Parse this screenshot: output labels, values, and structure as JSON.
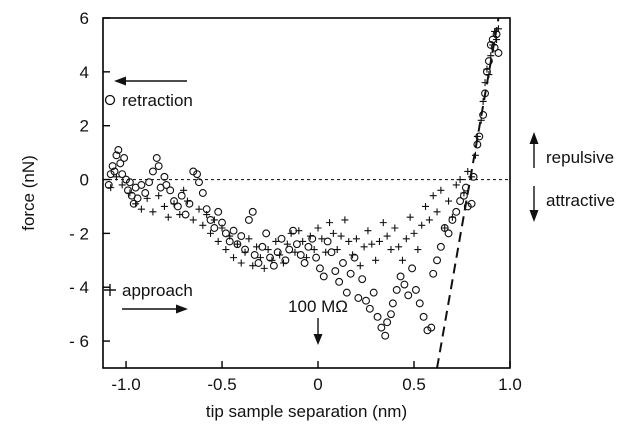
{
  "chart_data": {
    "type": "scatter",
    "title": "",
    "xlabel": "tip sample separation (nm)",
    "ylabel": "force (nN)",
    "xlim": [
      -1.12,
      1.0
    ],
    "ylim": [
      -7.0,
      6.0
    ],
    "x_ticks": [
      -1.0,
      -0.5,
      0,
      0.5,
      1.0
    ],
    "x_tick_labels": [
      "-1.0",
      "-0.5",
      "0",
      "0.5",
      "1.0"
    ],
    "y_ticks": [
      6,
      4,
      2,
      0,
      -2,
      -4,
      -6
    ],
    "y_tick_labels": [
      "6",
      "4",
      "2",
      "0",
      "- 2",
      "- 4",
      "- 6"
    ],
    "grid": false,
    "zero_line": {
      "y": 0,
      "style": "dotted"
    },
    "fit_line": {
      "style": "dashed",
      "points": [
        [
          0.62,
          -7.0
        ],
        [
          0.94,
          6.0
        ]
      ]
    },
    "series": [
      {
        "name": "retraction",
        "marker": "circle",
        "points": [
          [
            -1.09,
            -0.2
          ],
          [
            -1.08,
            0.2
          ],
          [
            -1.07,
            0.5
          ],
          [
            -1.06,
            0.3
          ],
          [
            -1.05,
            0.9
          ],
          [
            -1.04,
            1.1
          ],
          [
            -1.03,
            0.6
          ],
          [
            -1.02,
            0.2
          ],
          [
            -1.01,
            0.8
          ],
          [
            -1.0,
            0.0
          ],
          [
            -0.99,
            -0.4
          ],
          [
            -0.98,
            -0.1
          ],
          [
            -0.97,
            -0.6
          ],
          [
            -0.96,
            -0.9
          ],
          [
            -0.95,
            -0.3
          ],
          [
            -0.94,
            -0.7
          ],
          [
            -0.92,
            -0.2
          ],
          [
            -0.9,
            -0.5
          ],
          [
            -0.88,
            -0.1
          ],
          [
            -0.86,
            0.3
          ],
          [
            -0.84,
            0.8
          ],
          [
            -0.83,
            0.5
          ],
          [
            -0.82,
            -0.3
          ],
          [
            -0.8,
            0.1
          ],
          [
            -0.79,
            -0.2
          ],
          [
            -0.77,
            -0.4
          ],
          [
            -0.75,
            -0.8
          ],
          [
            -0.73,
            -1.0
          ],
          [
            -0.71,
            -0.6
          ],
          [
            -0.69,
            -1.3
          ],
          [
            -0.67,
            -0.9
          ],
          [
            -0.65,
            0.3
          ],
          [
            -0.63,
            0.2
          ],
          [
            -0.62,
            -0.1
          ],
          [
            -0.6,
            -0.5
          ],
          [
            -0.58,
            -1.1
          ],
          [
            -0.56,
            -1.5
          ],
          [
            -0.54,
            -1.8
          ],
          [
            -0.52,
            -1.2
          ],
          [
            -0.5,
            -1.6
          ],
          [
            -0.48,
            -2.0
          ],
          [
            -0.46,
            -2.3
          ],
          [
            -0.44,
            -1.9
          ],
          [
            -0.42,
            -2.4
          ],
          [
            -0.4,
            -2.1
          ],
          [
            -0.38,
            -2.6
          ],
          [
            -0.36,
            -1.5
          ],
          [
            -0.34,
            -1.2
          ],
          [
            -0.33,
            -2.8
          ],
          [
            -0.31,
            -3.1
          ],
          [
            -0.29,
            -2.5
          ],
          [
            -0.27,
            -2.0
          ],
          [
            -0.25,
            -2.9
          ],
          [
            -0.23,
            -3.2
          ],
          [
            -0.21,
            -2.7
          ],
          [
            -0.19,
            -2.2
          ],
          [
            -0.17,
            -3.0
          ],
          [
            -0.15,
            -2.6
          ],
          [
            -0.13,
            -1.9
          ],
          [
            -0.11,
            -2.4
          ],
          [
            -0.09,
            -2.8
          ],
          [
            -0.07,
            -3.1
          ],
          [
            -0.05,
            -2.5
          ],
          [
            -0.03,
            -2.2
          ],
          [
            -0.01,
            -2.9
          ],
          [
            0.01,
            -3.3
          ],
          [
            0.03,
            -3.6
          ],
          [
            0.05,
            -2.3
          ],
          [
            0.07,
            -2.7
          ],
          [
            0.09,
            -3.4
          ],
          [
            0.11,
            -3.8
          ],
          [
            0.13,
            -3.1
          ],
          [
            0.15,
            -4.2
          ],
          [
            0.17,
            -3.5
          ],
          [
            0.19,
            -2.9
          ],
          [
            0.21,
            -4.4
          ],
          [
            0.23,
            -3.7
          ],
          [
            0.25,
            -4.5
          ],
          [
            0.27,
            -4.8
          ],
          [
            0.29,
            -4.2
          ],
          [
            0.31,
            -5.1
          ],
          [
            0.33,
            -5.5
          ],
          [
            0.35,
            -5.8
          ],
          [
            0.36,
            -5.3
          ],
          [
            0.38,
            -5.0
          ],
          [
            0.39,
            -4.6
          ],
          [
            0.41,
            -4.1
          ],
          [
            0.43,
            -3.6
          ],
          [
            0.45,
            -3.9
          ],
          [
            0.47,
            -4.3
          ],
          [
            0.49,
            -3.3
          ],
          [
            0.51,
            -4.1
          ],
          [
            0.53,
            -4.6
          ],
          [
            0.55,
            -5.1
          ],
          [
            0.57,
            -5.6
          ],
          [
            0.59,
            -5.5
          ],
          [
            0.6,
            -3.5
          ],
          [
            0.62,
            -3.0
          ],
          [
            0.64,
            -2.5
          ],
          [
            0.66,
            -1.8
          ],
          [
            0.68,
            -2.0
          ],
          [
            0.7,
            -1.5
          ],
          [
            0.72,
            -1.2
          ],
          [
            0.74,
            -0.8
          ],
          [
            0.76,
            -0.6
          ],
          [
            0.77,
            -0.3
          ],
          [
            0.78,
            -1.0
          ],
          [
            0.8,
            -0.9
          ],
          [
            0.81,
            0.1
          ],
          [
            0.83,
            1.3
          ],
          [
            0.84,
            1.6
          ],
          [
            0.86,
            2.4
          ],
          [
            0.87,
            3.2
          ],
          [
            0.88,
            4.0
          ],
          [
            0.89,
            4.4
          ],
          [
            0.9,
            5.0
          ],
          [
            0.91,
            5.2
          ],
          [
            0.92,
            4.9
          ],
          [
            0.93,
            5.4
          ],
          [
            0.94,
            4.7
          ]
        ]
      },
      {
        "name": "approach",
        "marker": "plus",
        "points": [
          [
            -1.08,
            -0.3
          ],
          [
            -1.05,
            0.1
          ],
          [
            -1.02,
            -0.2
          ],
          [
            -0.98,
            -0.5
          ],
          [
            -0.95,
            -0.9
          ],
          [
            -0.92,
            -1.1
          ],
          [
            -0.89,
            -0.7
          ],
          [
            -0.86,
            -1.2
          ],
          [
            -0.83,
            -0.6
          ],
          [
            -0.8,
            -1.0
          ],
          [
            -0.78,
            -1.4
          ],
          [
            -0.75,
            -0.9
          ],
          [
            -0.72,
            -1.3
          ],
          [
            -0.7,
            -0.4
          ],
          [
            -0.68,
            -0.8
          ],
          [
            -0.65,
            -1.5
          ],
          [
            -0.62,
            -1.1
          ],
          [
            -0.6,
            -1.7
          ],
          [
            -0.58,
            -1.3
          ],
          [
            -0.56,
            -2.0
          ],
          [
            -0.54,
            -1.5
          ],
          [
            -0.52,
            -2.3
          ],
          [
            -0.5,
            -1.8
          ],
          [
            -0.48,
            -2.6
          ],
          [
            -0.46,
            -2.1
          ],
          [
            -0.44,
            -2.9
          ],
          [
            -0.42,
            -2.4
          ],
          [
            -0.4,
            -3.1
          ],
          [
            -0.38,
            -2.7
          ],
          [
            -0.36,
            -2.2
          ],
          [
            -0.34,
            -3.2
          ],
          [
            -0.32,
            -2.5
          ],
          [
            -0.3,
            -2.9
          ],
          [
            -0.28,
            -3.3
          ],
          [
            -0.26,
            -2.6
          ],
          [
            -0.24,
            -3.0
          ],
          [
            -0.22,
            -2.3
          ],
          [
            -0.2,
            -2.8
          ],
          [
            -0.18,
            -3.1
          ],
          [
            -0.16,
            -2.4
          ],
          [
            -0.14,
            -2.0
          ],
          [
            -0.12,
            -2.7
          ],
          [
            -0.1,
            -1.9
          ],
          [
            -0.08,
            -2.3
          ],
          [
            -0.06,
            -2.9
          ],
          [
            -0.04,
            -2.1
          ],
          [
            -0.02,
            -2.6
          ],
          [
            0.0,
            -1.8
          ],
          [
            0.02,
            -2.2
          ],
          [
            0.04,
            -2.7
          ],
          [
            0.06,
            -1.6
          ],
          [
            0.08,
            -2.0
          ],
          [
            0.1,
            -2.6
          ],
          [
            0.12,
            -2.1
          ],
          [
            0.14,
            -1.5
          ],
          [
            0.16,
            -2.3
          ],
          [
            0.18,
            -2.8
          ],
          [
            0.2,
            -2.2
          ],
          [
            0.22,
            -3.2
          ],
          [
            0.24,
            -2.5
          ],
          [
            0.26,
            -1.9
          ],
          [
            0.28,
            -2.4
          ],
          [
            0.3,
            -3.0
          ],
          [
            0.32,
            -2.3
          ],
          [
            0.34,
            -1.6
          ],
          [
            0.36,
            -2.1
          ],
          [
            0.38,
            -2.6
          ],
          [
            0.4,
            -1.8
          ],
          [
            0.42,
            -2.5
          ],
          [
            0.44,
            -3.0
          ],
          [
            0.46,
            -2.2
          ],
          [
            0.48,
            -1.4
          ],
          [
            0.5,
            -2.0
          ],
          [
            0.52,
            -2.6
          ],
          [
            0.54,
            -1.7
          ],
          [
            0.56,
            -1.0
          ],
          [
            0.58,
            -1.5
          ],
          [
            0.6,
            -0.6
          ],
          [
            0.62,
            -1.2
          ],
          [
            0.64,
            -0.4
          ],
          [
            0.66,
            -1.8
          ],
          [
            0.68,
            -0.8
          ],
          [
            0.7,
            -1.4
          ],
          [
            0.72,
            -0.2
          ],
          [
            0.74,
            0.0
          ],
          [
            0.76,
            -0.5
          ],
          [
            0.78,
            0.3
          ],
          [
            0.8,
            0.1
          ],
          [
            0.82,
            0.9
          ],
          [
            0.83,
            1.6
          ],
          [
            0.85,
            2.2
          ],
          [
            0.86,
            2.9
          ],
          [
            0.87,
            3.6
          ],
          [
            0.88,
            4.1
          ],
          [
            0.89,
            3.9
          ],
          [
            0.9,
            4.6
          ],
          [
            0.91,
            5.0
          ],
          [
            0.92,
            5.5
          ],
          [
            0.93,
            5.2
          ],
          [
            0.94,
            5.6
          ]
        ]
      }
    ],
    "annotations": {
      "retraction_label": "retraction",
      "approach_label": "approach",
      "resistance_label": "100 MΩ",
      "resistance_x": 0,
      "repulsive_label": "repulsive",
      "attractive_label": "attractive"
    }
  }
}
